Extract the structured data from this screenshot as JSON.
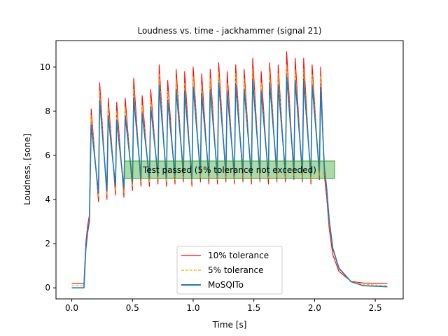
{
  "chart_data": {
    "type": "line",
    "title": "Loudness vs. time - jackhammer (signal 21)",
    "xlabel": "Time [s]",
    "ylabel": "Loudness, [sone]",
    "xlim": [
      -0.13,
      2.73
    ],
    "ylim": [
      -0.5,
      11.2
    ],
    "xticks": [
      0.0,
      0.5,
      1.0,
      1.5,
      2.0,
      2.5
    ],
    "yticks": [
      0,
      2,
      4,
      6,
      8,
      10
    ],
    "xtick_labels": [
      "0.0",
      "0.5",
      "1.0",
      "1.5",
      "2.0",
      "2.5"
    ],
    "ytick_labels": [
      "0",
      "2",
      "4",
      "6",
      "8",
      "10"
    ],
    "grid": false,
    "legend_position": "lower center",
    "legend": [
      {
        "label": "10% tolerance",
        "color": "#ff0000",
        "style": "solid"
      },
      {
        "label": "5% tolerance",
        "color": "#ffa500",
        "style": "dashed"
      },
      {
        "label": "MoSQITo",
        "color": "#1f77b4",
        "style": "solid"
      }
    ],
    "annotation": {
      "text": "Test passed (5% tolerance not exceeded)",
      "box_color": "#2ca02c"
    },
    "series": [
      {
        "name": "MoSQITo",
        "color": "#1f77b4",
        "x": [
          0.0,
          0.1,
          0.115,
          0.13,
          0.145,
          0.16,
          0.22,
          0.23,
          0.29,
          0.3,
          0.36,
          0.37,
          0.43,
          0.44,
          0.5,
          0.51,
          0.57,
          0.58,
          0.64,
          0.65,
          0.71,
          0.72,
          0.78,
          0.79,
          0.85,
          0.86,
          0.92,
          0.93,
          0.99,
          1.0,
          1.06,
          1.07,
          1.13,
          1.14,
          1.2,
          1.21,
          1.27,
          1.28,
          1.34,
          1.35,
          1.41,
          1.42,
          1.48,
          1.49,
          1.55,
          1.56,
          1.62,
          1.63,
          1.69,
          1.7,
          1.76,
          1.77,
          1.83,
          1.84,
          1.9,
          1.91,
          1.97,
          1.98,
          2.04,
          2.05,
          2.08,
          2.1,
          2.12,
          2.15,
          2.2,
          2.3,
          2.4,
          2.6
        ],
        "y": [
          0.0,
          0.0,
          1.7,
          2.5,
          3.0,
          7.4,
          4.3,
          8.5,
          4.4,
          7.8,
          4.6,
          7.6,
          4.5,
          7.8,
          4.8,
          8.6,
          5.0,
          7.9,
          5.0,
          8.2,
          5.1,
          9.2,
          5.0,
          8.5,
          5.1,
          9.0,
          5.2,
          8.9,
          5.0,
          9.1,
          5.2,
          8.8,
          5.1,
          9.0,
          5.1,
          9.3,
          5.2,
          8.9,
          5.1,
          9.2,
          5.2,
          9.0,
          5.1,
          9.4,
          5.2,
          8.9,
          5.1,
          9.3,
          5.2,
          9.2,
          5.2,
          9.6,
          5.3,
          9.4,
          5.2,
          9.4,
          5.1,
          9.2,
          5.3,
          9.1,
          5.5,
          4.5,
          3.1,
          1.8,
          0.9,
          0.28,
          0.1,
          0.05
        ]
      },
      {
        "name": "5% tolerance",
        "color": "#ffa500",
        "x": [
          0.0,
          0.1,
          0.115,
          0.13,
          0.145,
          0.16,
          0.22,
          0.23,
          0.29,
          0.3,
          0.36,
          0.37,
          0.43,
          0.44,
          0.5,
          0.51,
          0.57,
          0.58,
          0.64,
          0.65,
          0.71,
          0.72,
          0.78,
          0.79,
          0.85,
          0.86,
          0.92,
          0.93,
          0.99,
          1.0,
          1.06,
          1.07,
          1.13,
          1.14,
          1.2,
          1.21,
          1.27,
          1.28,
          1.34,
          1.35,
          1.41,
          1.42,
          1.48,
          1.49,
          1.55,
          1.56,
          1.62,
          1.63,
          1.69,
          1.7,
          1.76,
          1.77,
          1.83,
          1.84,
          1.9,
          1.91,
          1.97,
          1.98,
          2.04,
          2.05,
          2.08,
          2.1,
          2.12,
          2.15,
          2.2,
          2.3,
          2.4,
          2.6
        ],
        "y": [
          0.1,
          0.1,
          1.8,
          2.6,
          3.1,
          7.8,
          4.1,
          8.9,
          4.2,
          8.2,
          4.4,
          8.0,
          4.3,
          8.2,
          4.6,
          9.0,
          4.8,
          8.3,
          4.8,
          8.6,
          4.9,
          9.7,
          4.8,
          8.9,
          4.9,
          9.5,
          5.0,
          9.3,
          4.8,
          9.6,
          5.0,
          9.2,
          4.9,
          9.5,
          4.9,
          9.8,
          5.0,
          9.3,
          4.9,
          9.7,
          5.0,
          9.5,
          4.9,
          9.9,
          5.0,
          9.3,
          4.9,
          9.8,
          5.0,
          9.7,
          5.0,
          10.1,
          5.1,
          9.9,
          5.0,
          9.9,
          4.9,
          9.7,
          5.1,
          9.6,
          5.3,
          4.3,
          2.9,
          1.7,
          0.85,
          0.3,
          0.16,
          0.1
        ]
      },
      {
        "name": "10% tolerance",
        "color": "#ff0000",
        "x": [
          0.0,
          0.1,
          0.115,
          0.13,
          0.145,
          0.16,
          0.22,
          0.23,
          0.29,
          0.3,
          0.36,
          0.37,
          0.43,
          0.44,
          0.5,
          0.51,
          0.57,
          0.58,
          0.64,
          0.65,
          0.71,
          0.72,
          0.78,
          0.79,
          0.85,
          0.86,
          0.92,
          0.93,
          0.99,
          1.0,
          1.06,
          1.07,
          1.13,
          1.14,
          1.2,
          1.21,
          1.27,
          1.28,
          1.34,
          1.35,
          1.41,
          1.42,
          1.48,
          1.49,
          1.55,
          1.56,
          1.62,
          1.63,
          1.69,
          1.7,
          1.76,
          1.77,
          1.83,
          1.84,
          1.9,
          1.91,
          1.97,
          1.98,
          2.04,
          2.05,
          2.08,
          2.1,
          2.12,
          2.15,
          2.2,
          2.3,
          2.4,
          2.6
        ],
        "y": [
          0.2,
          0.2,
          2.0,
          2.8,
          3.3,
          8.1,
          3.9,
          9.3,
          4.0,
          8.6,
          4.2,
          8.4,
          4.1,
          8.6,
          4.4,
          9.5,
          4.6,
          8.7,
          4.6,
          9.0,
          4.7,
          10.1,
          4.6,
          9.4,
          4.7,
          9.9,
          4.8,
          9.8,
          4.6,
          10.0,
          4.8,
          9.7,
          4.7,
          9.9,
          4.7,
          10.2,
          4.8,
          9.8,
          4.7,
          10.1,
          4.8,
          9.9,
          4.7,
          10.4,
          4.8,
          9.8,
          4.7,
          10.2,
          4.8,
          10.1,
          4.8,
          10.7,
          4.9,
          10.4,
          4.8,
          10.4,
          4.7,
          10.1,
          4.9,
          10.0,
          5.1,
          4.1,
          2.7,
          1.5,
          0.75,
          0.3,
          0.22,
          0.2
        ]
      }
    ]
  }
}
